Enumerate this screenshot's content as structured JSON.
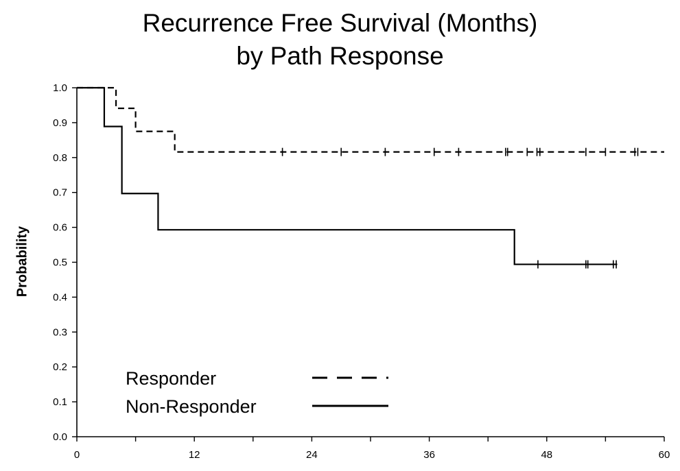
{
  "chart_data": {
    "type": "line",
    "title_line1": "Recurrence Free Survival (Months)",
    "title_line2": "by Path Response",
    "xlabel": "",
    "ylabel": "Probability",
    "xlim": [
      0,
      60
    ],
    "ylim": [
      0,
      1.0
    ],
    "xticks": [
      0,
      12,
      24,
      36,
      48,
      60
    ],
    "yticks": [
      "0.0",
      "0.1",
      "0.2",
      "0.3",
      "0.4",
      "0.5",
      "0.6",
      "0.7",
      "0.8",
      "0.9",
      "1.0"
    ],
    "grid": false,
    "legend_position": "bottom-left",
    "series": [
      {
        "name": "Responder",
        "style": "dashed",
        "color": "#000000",
        "steps": [
          {
            "x": 0,
            "y": 1.0
          },
          {
            "x": 4,
            "y": 0.941
          },
          {
            "x": 6,
            "y": 0.875
          },
          {
            "x": 10,
            "y": 0.816
          }
        ],
        "end_x": 60,
        "censor_times": [
          21,
          27,
          31.5,
          36.5,
          39,
          43.8,
          44,
          46,
          47,
          47.3,
          52,
          54,
          57,
          57.3
        ]
      },
      {
        "name": "Non-Responder",
        "style": "solid",
        "color": "#000000",
        "steps": [
          {
            "x": 0,
            "y": 1.0
          },
          {
            "x": 2.8,
            "y": 0.889
          },
          {
            "x": 4.6,
            "y": 0.697
          },
          {
            "x": 8.3,
            "y": 0.593
          },
          {
            "x": 44.7,
            "y": 0.494
          }
        ],
        "end_x": 55.2,
        "censor_times": [
          47.1,
          52,
          52.2,
          54.8,
          55.1
        ]
      }
    ]
  }
}
